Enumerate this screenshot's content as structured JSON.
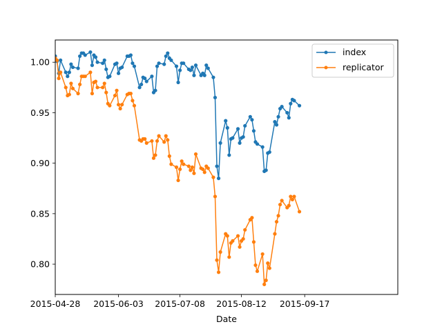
{
  "chart_data": {
    "type": "line",
    "xlabel": "Date",
    "ylabel": "",
    "ylim": [
      0.77,
      1.022
    ],
    "xlim": [
      "2015-04-28",
      "2015-11-09"
    ],
    "x_ticks": [
      "2015-04-28",
      "2015-06-03",
      "2015-07-08",
      "2015-08-12",
      "2015-09-17"
    ],
    "y_ticks": [
      0.8,
      0.85,
      0.9,
      0.95,
      1.0
    ],
    "y_tick_labels": [
      "0.80",
      "0.85",
      "0.90",
      "0.95",
      "1.00"
    ],
    "legend_position": "top-right",
    "grid": false,
    "x_start": "2015-04-28",
    "series": [
      {
        "name": "index",
        "color": "#1f77b4",
        "values": [
          1.006,
          1.001,
          0.989,
          1.002,
          0.99,
          0.986,
          0.99,
          0.998,
          0.995,
          0.994,
          1.006,
          1.009,
          1.009,
          1.007,
          1.01,
          0.997,
          1.007,
          1.005,
          1.0,
          0.999,
          1.002,
          0.993,
          0.985,
          0.986,
          0.998,
          0.999,
          0.989,
          0.994,
          0.995,
          1.006,
          1.006,
          1.007,
          0.999,
          0.996,
          0.975,
          0.978,
          0.985,
          0.984,
          0.981,
          0.986,
          0.97,
          0.972,
          0.996,
          0.999,
          0.998,
          1.006,
          1.009,
          1.004,
          1.002,
          0.996,
          0.98,
          0.992,
          0.999,
          0.999,
          0.993,
          0.992,
          0.995,
          0.987,
          0.997,
          0.987,
          0.989,
          0.987,
          0.997,
          0.994,
          0.985,
          0.965,
          0.897,
          0.885,
          0.92,
          0.942,
          0.935,
          0.908,
          0.924,
          0.925,
          0.934,
          0.92,
          0.925,
          0.926,
          0.937,
          0.946,
          0.943,
          0.932,
          0.921,
          0.919,
          0.916,
          0.892,
          0.893,
          0.91,
          0.911,
          0.941,
          0.938,
          0.946,
          0.954,
          0.956,
          0.95,
          0.945,
          0.959,
          0.963,
          0.962,
          0.957
        ]
      },
      {
        "name": "replicator",
        "color": "#ff7f0e",
        "values": [
          1.004,
          1.002,
          0.984,
          0.99,
          0.975,
          0.967,
          0.968,
          0.979,
          0.974,
          0.969,
          0.978,
          0.986,
          0.986,
          0.986,
          0.99,
          0.969,
          0.98,
          0.981,
          0.975,
          0.975,
          0.979,
          0.97,
          0.959,
          0.957,
          0.967,
          0.972,
          0.958,
          0.954,
          0.958,
          0.968,
          0.969,
          0.969,
          0.962,
          0.957,
          0.923,
          0.922,
          0.924,
          0.924,
          0.92,
          0.922,
          0.905,
          0.908,
          0.922,
          0.927,
          0.921,
          0.927,
          0.923,
          0.907,
          0.899,
          0.896,
          0.883,
          0.894,
          0.902,
          0.899,
          0.897,
          0.893,
          0.896,
          0.89,
          0.909,
          0.895,
          0.894,
          0.891,
          0.897,
          0.895,
          0.886,
          0.867,
          0.804,
          0.792,
          0.812,
          0.83,
          0.828,
          0.807,
          0.821,
          0.823,
          0.828,
          0.817,
          0.823,
          0.825,
          0.834,
          0.844,
          0.846,
          0.822,
          0.799,
          0.793,
          0.81,
          0.78,
          0.784,
          0.801,
          0.796,
          0.83,
          0.842,
          0.848,
          0.859,
          0.863,
          0.856,
          0.858,
          0.867,
          0.864,
          0.867,
          0.852
        ]
      }
    ]
  }
}
